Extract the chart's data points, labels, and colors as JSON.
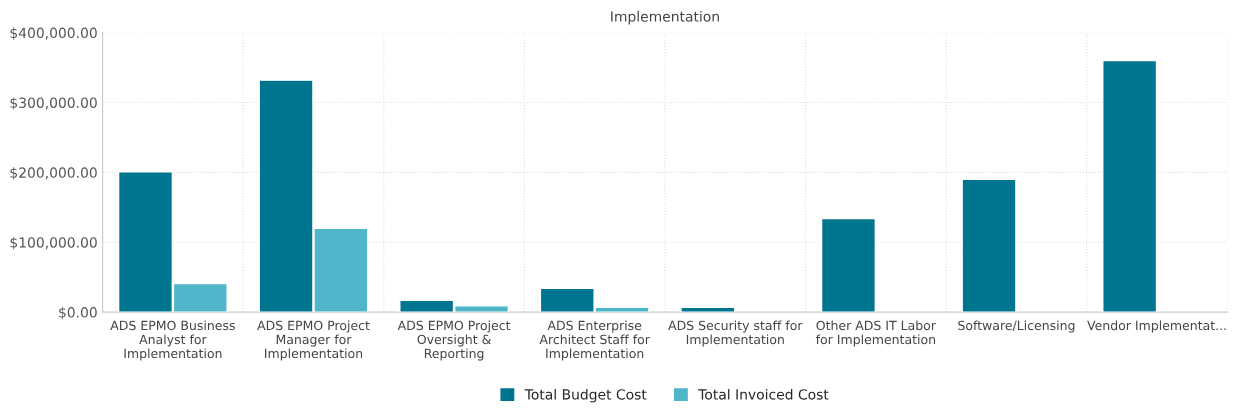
{
  "chart_data": {
    "type": "bar",
    "title": "Implementation",
    "categories": [
      "ADS EPMO Business\nAnalyst for\nImplementation",
      "ADS EPMO Project\nManager for\nImplementation",
      "ADS EPMO Project\nOversight &\nReporting",
      "ADS Enterprise\nArchitect Staff for\nImplementation",
      "ADS Security staff for\nImplementation",
      "Other ADS IT Labor\nfor Implementation",
      "Software/Licensing",
      "Vendor Implementat..."
    ],
    "series": [
      {
        "name": "Total Budget Cost",
        "color": "#00758f",
        "values": [
          201000,
          332000,
          17000,
          34000,
          7000,
          134000,
          190000,
          360000
        ]
      },
      {
        "name": "Total Invoiced Cost",
        "color": "#4fb5c8",
        "values": [
          41000,
          120000,
          9000,
          7000,
          null,
          null,
          null,
          null
        ]
      }
    ],
    "ylim": [
      0,
      400000
    ],
    "yticks": [
      {
        "value": 0,
        "label": "$0.00"
      },
      {
        "value": 100000,
        "label": "$100,000.00"
      },
      {
        "value": 200000,
        "label": "$200,000.00"
      },
      {
        "value": 300000,
        "label": "$300,000.00"
      },
      {
        "value": 400000,
        "label": "$400,000.00"
      }
    ],
    "grid": true,
    "legend": "bottom"
  }
}
